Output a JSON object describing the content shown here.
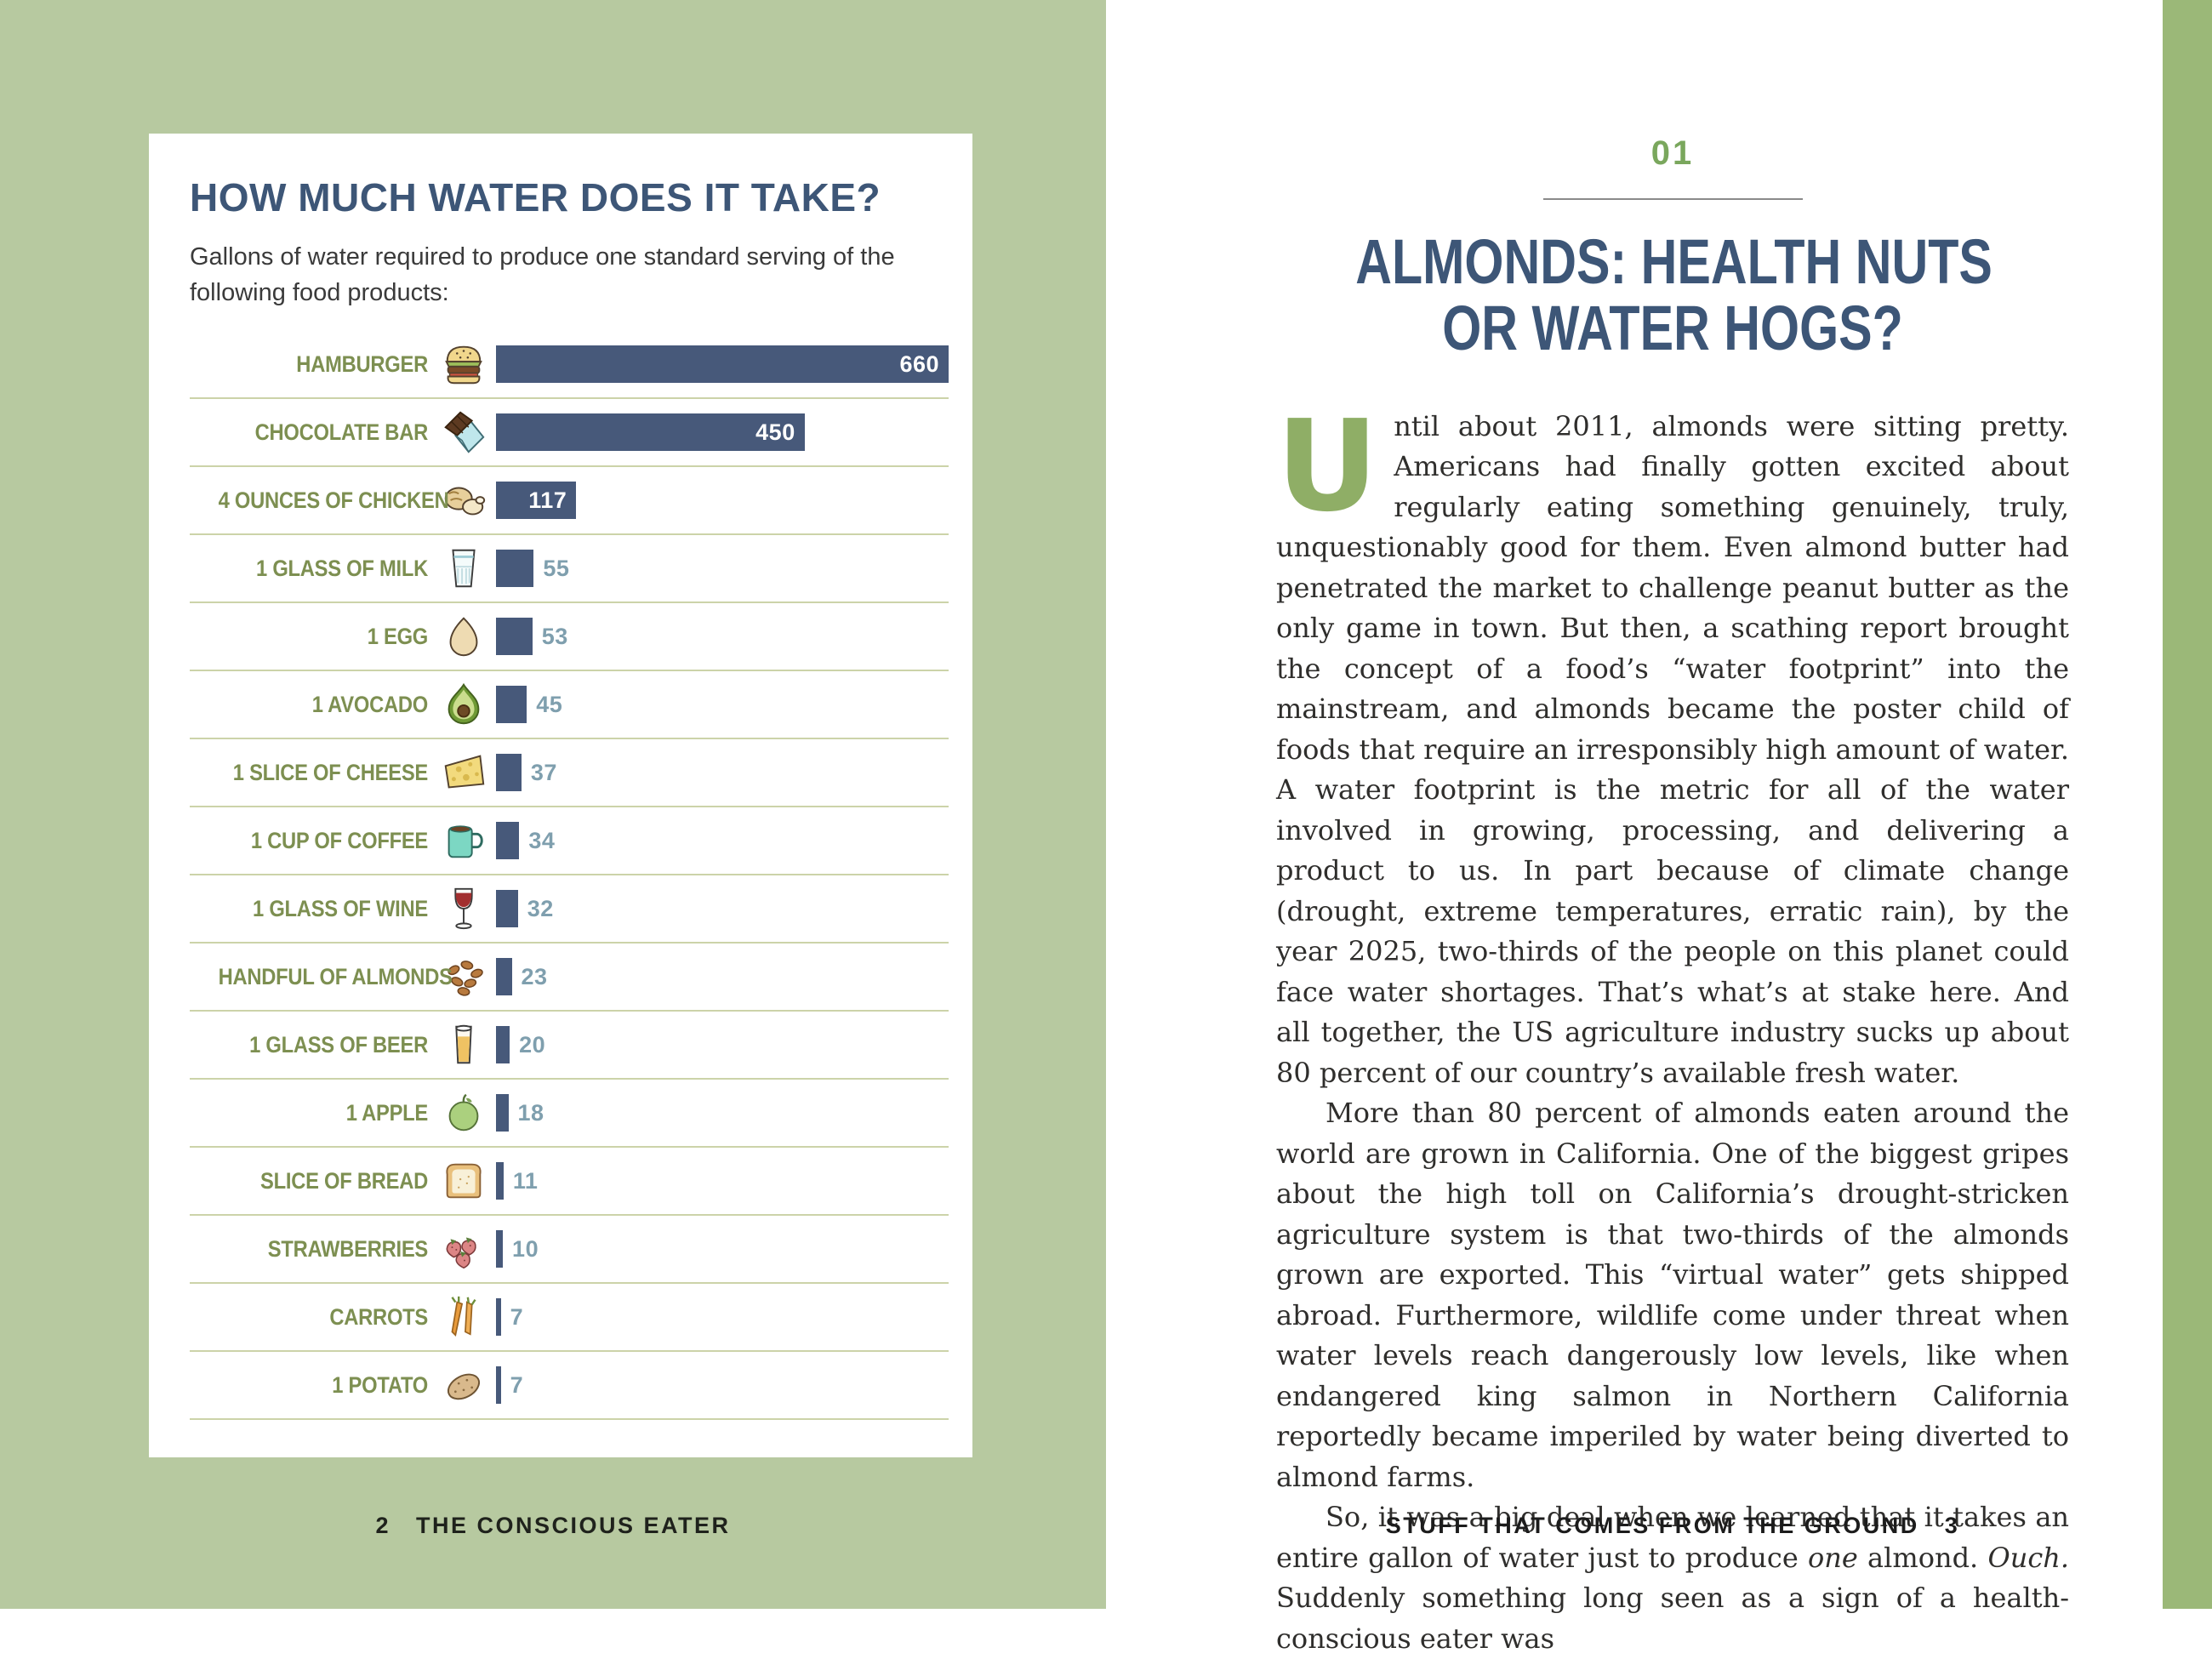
{
  "colors": {
    "left_page_background": "#b7c9a0",
    "right_edge_band": "#9bb878",
    "bar_fill": "#47597a",
    "heading_navy": "#3d5677",
    "food_label_green": "#7d8f51",
    "value_outside_text": "#7f9fae",
    "row_divider": "#ccd3a9",
    "chapter_number_green": "#7aa75d",
    "drop_cap_green": "#8fae66",
    "body_text": "#2f2e2c"
  },
  "left_page": {
    "chart_card": {
      "title": "HOW MUCH WATER DOES IT TAKE?",
      "subtitle": "Gallons of water required to produce one standard serving of the following food products:"
    },
    "footer": {
      "page_number": "2",
      "book_title": "THE CONSCIOUS EATER"
    }
  },
  "chart_data": {
    "type": "bar",
    "orientation": "horizontal",
    "title": "HOW MUCH WATER DOES IT TAKE?",
    "subtitle": "Gallons of water required to produce one standard serving of the following food products:",
    "max_value": 660,
    "value_label_inside_threshold": 100,
    "rows": [
      {
        "label": "HAMBURGER",
        "value": 660,
        "icon": "hamburger-icon"
      },
      {
        "label": "CHOCOLATE BAR",
        "value": 450,
        "icon": "chocolate-bar-icon"
      },
      {
        "label": "4 OUNCES OF CHICKEN",
        "value": 117,
        "icon": "chicken-icon"
      },
      {
        "label": "1 GLASS OF MILK",
        "value": 55,
        "icon": "milk-glass-icon"
      },
      {
        "label": "1 EGG",
        "value": 53,
        "icon": "egg-icon"
      },
      {
        "label": "1 AVOCADO",
        "value": 45,
        "icon": "avocado-icon"
      },
      {
        "label": "1 SLICE OF CHEESE",
        "value": 37,
        "icon": "cheese-icon"
      },
      {
        "label": "1 CUP OF COFFEE",
        "value": 34,
        "icon": "coffee-mug-icon"
      },
      {
        "label": "1 GLASS OF WINE",
        "value": 32,
        "icon": "wine-glass-icon"
      },
      {
        "label": "HANDFUL OF ALMONDS",
        "value": 23,
        "icon": "almonds-icon"
      },
      {
        "label": "1 GLASS OF BEER",
        "value": 20,
        "icon": "beer-glass-icon"
      },
      {
        "label": "1 APPLE",
        "value": 18,
        "icon": "apple-icon"
      },
      {
        "label": "SLICE OF BREAD",
        "value": 11,
        "icon": "bread-icon"
      },
      {
        "label": "STRAWBERRIES",
        "value": 10,
        "icon": "strawberries-icon"
      },
      {
        "label": "CARROTS",
        "value": 7,
        "icon": "carrots-icon"
      },
      {
        "label": "1 POTATO",
        "value": 7,
        "icon": "potato-icon"
      }
    ]
  },
  "right_page": {
    "chapter_number": "01",
    "chapter_title_lines": [
      "ALMONDS: HEALTH NUTS",
      "OR WATER HOGS?"
    ],
    "paragraphs": [
      {
        "drop_cap": "U",
        "segments": [
          {
            "text": "ntil about 2011, almonds were sitting pretty. Americans had finally gotten excited about regularly eating something genuinely, truly, unquestionably good for them. Even almond butter had penetrated the market to challenge peanut butter as the only game in town. But then, a scathing report brought the concept of a food’s “water footprint” into the mainstream, and almonds became the poster child of foods that require an irresponsibly high amount of water. A water footprint is the metric for all of the water involved in growing, processing, and delivering a product to us. In part because of climate change (drought, extreme temperatures, erratic rain), by the year 2025, two-thirds of the people on this planet could face water shortages. That’s what’s at stake here. And all together, the US agriculture industry sucks up about 80 percent of our country’s available fresh water."
          }
        ]
      },
      {
        "indent": true,
        "segments": [
          {
            "text": "More than 80 percent of almonds eaten around the world are grown in California. One of the biggest gripes about the high toll on California’s drought-stricken agriculture system is that two-thirds of the almonds grown are exported. This “virtual water” gets shipped abroad. Furthermore, wildlife come under threat when water levels reach dangerously low levels, like when endangered king salmon in Northern California reportedly became imperiled by water being diverted to almond farms."
          }
        ]
      },
      {
        "indent": true,
        "segments": [
          {
            "text": "So, it was a big deal when we learned that it takes an entire gallon of water just to produce "
          },
          {
            "text": "one",
            "italic": true
          },
          {
            "text": " almond. "
          },
          {
            "text": "Ouch.",
            "italic": true
          },
          {
            "text": " Suddenly something long seen as a sign of a health-conscious eater was"
          }
        ]
      }
    ],
    "footer": {
      "section_title": "STUFF THAT COMES FROM THE GROUND",
      "page_number": "3"
    }
  }
}
